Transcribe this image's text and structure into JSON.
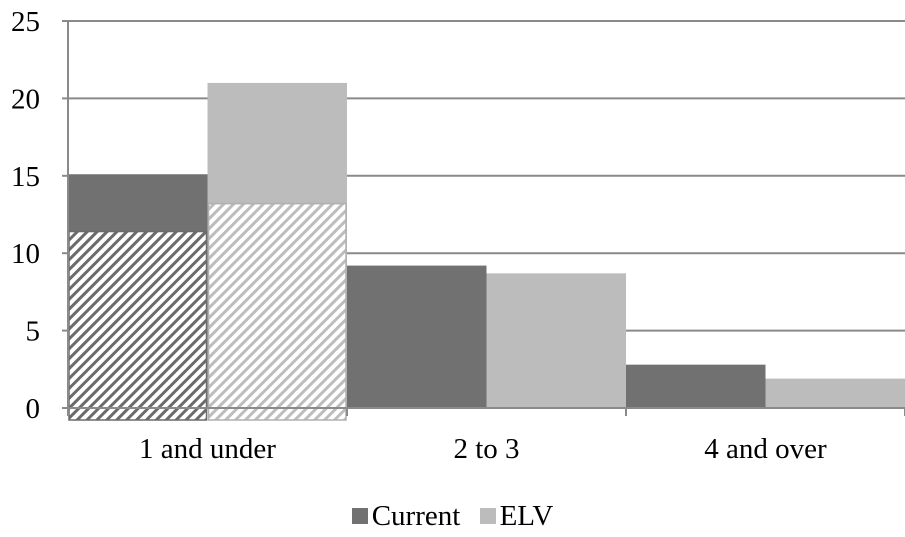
{
  "chart_data": {
    "type": "bar",
    "title": "",
    "xlabel": "",
    "ylabel": "",
    "ylim": [
      0,
      25
    ],
    "yticks": [
      "0",
      "5",
      "10",
      "15",
      "20",
      "25"
    ],
    "categories": [
      "1 and under",
      "2 to 3",
      "4 and over"
    ],
    "series": [
      {
        "name": "Current",
        "color": "#717171",
        "values": [
          15.1,
          9.2,
          2.8
        ]
      },
      {
        "name": "ELV",
        "color": "#bcbcbc",
        "values": [
          21.0,
          8.7,
          1.9
        ]
      }
    ],
    "hatched_overlay": {
      "category": "1 and under",
      "values": {
        "Current": 11.4,
        "ELV": 13.2
      }
    },
    "grid": true,
    "legend": "bottom"
  }
}
